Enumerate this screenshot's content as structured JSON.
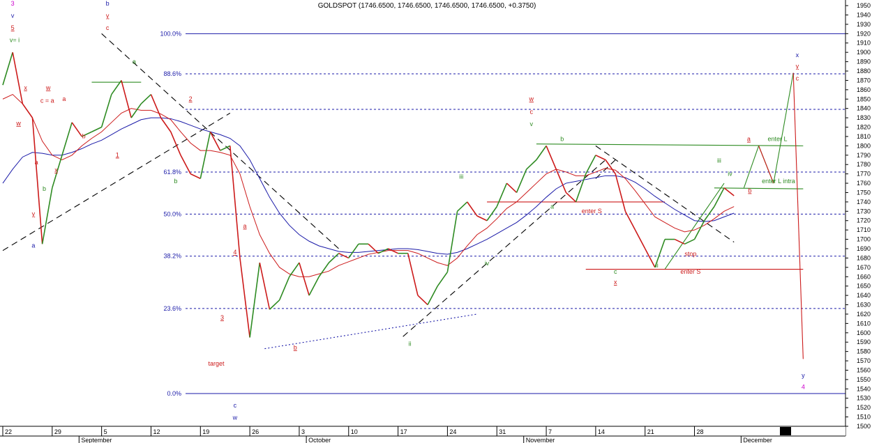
{
  "chart_data": {
    "type": "line",
    "title": "GOLDSPOT (1746.6500, 1746.6500, 1746.6500, 1746.6500, +0.3750)",
    "ylim": [
      1500,
      1956
    ],
    "grid": false,
    "y_ticks": [
      1500,
      1510,
      1520,
      1530,
      1540,
      1550,
      1560,
      1570,
      1580,
      1590,
      1600,
      1610,
      1620,
      1630,
      1640,
      1650,
      1660,
      1670,
      1680,
      1690,
      1700,
      1710,
      1720,
      1730,
      1740,
      1750,
      1760,
      1770,
      1780,
      1790,
      1800,
      1810,
      1820,
      1830,
      1840,
      1850,
      1860,
      1870,
      1880,
      1890,
      1900,
      1910,
      1920,
      1930,
      1940,
      1950
    ],
    "x_ticks": [
      {
        "label": "22",
        "i": 0
      },
      {
        "label": "29",
        "i": 5
      },
      {
        "label": "5",
        "i": 10
      },
      {
        "label": "12",
        "i": 15
      },
      {
        "label": "19",
        "i": 20
      },
      {
        "label": "26",
        "i": 25
      },
      {
        "label": "3",
        "i": 30
      },
      {
        "label": "10",
        "i": 35
      },
      {
        "label": "17",
        "i": 40
      },
      {
        "label": "24",
        "i": 45
      },
      {
        "label": "31",
        "i": 50
      },
      {
        "label": "7",
        "i": 55
      },
      {
        "label": "14",
        "i": 60
      },
      {
        "label": "21",
        "i": 65
      },
      {
        "label": "28",
        "i": 70
      }
    ],
    "months": [
      {
        "label": "September",
        "i": 8
      },
      {
        "label": "October",
        "i": 31
      },
      {
        "label": "November",
        "i": 53
      },
      {
        "label": "December",
        "i": 75
      }
    ],
    "x_range": [
      0,
      85
    ],
    "series": [
      {
        "color": "#2e8b22",
        "down_color": "#cc1a1a",
        "values": [
          1865,
          1900,
          1845,
          1830,
          1695,
          1755,
          1790,
          1825,
          1810,
          1815,
          1820,
          1855,
          1870,
          1830,
          1845,
          1855,
          1830,
          1815,
          1790,
          1770,
          1765,
          1815,
          1795,
          1800,
          1680,
          1595,
          1675,
          1625,
          1635,
          1660,
          1675,
          1640,
          1660,
          1675,
          1685,
          1680,
          1695,
          1695,
          1685,
          1690,
          1685,
          1685,
          1640,
          1630,
          1650,
          1665,
          1730,
          1740,
          1725,
          1720,
          1735,
          1760,
          1750,
          1775,
          1785,
          1800,
          1775,
          1750,
          1740,
          1770,
          1790,
          1785,
          1770,
          1730,
          1710,
          1690,
          1670,
          1700,
          1700,
          1695,
          1700,
          1720,
          1735,
          1755,
          1746.65
        ]
      },
      {
        "color": "#cc1a1a",
        "values": [
          1850,
          1855,
          1845,
          1830,
          1805,
          1790,
          1785,
          1790,
          1800,
          1808,
          1815,
          1825,
          1835,
          1840,
          1838,
          1838,
          1834,
          1828,
          1815,
          1803,
          1795,
          1795,
          1793,
          1790,
          1770,
          1735,
          1705,
          1685,
          1670,
          1663,
          1660,
          1660,
          1663,
          1666,
          1672,
          1676,
          1680,
          1684,
          1686,
          1688,
          1688,
          1688,
          1685,
          1680,
          1675,
          1672,
          1680,
          1693,
          1705,
          1712,
          1722,
          1733,
          1740,
          1750,
          1760,
          1770,
          1775,
          1772,
          1768,
          1768,
          1772,
          1776,
          1774,
          1765,
          1752,
          1738,
          1724,
          1718,
          1712,
          1708,
          1710,
          1715,
          1722,
          1730,
          1735
        ]
      },
      {
        "color": "#1a1aa8",
        "values": [
          1760,
          1775,
          1788,
          1793,
          1792,
          1790,
          1790,
          1793,
          1797,
          1802,
          1806,
          1812,
          1818,
          1823,
          1828,
          1830,
          1830,
          1829,
          1826,
          1822,
          1818,
          1815,
          1812,
          1808,
          1800,
          1785,
          1765,
          1745,
          1728,
          1715,
          1705,
          1698,
          1693,
          1690,
          1687,
          1686,
          1686,
          1687,
          1688,
          1689,
          1690,
          1690,
          1689,
          1687,
          1685,
          1684,
          1686,
          1690,
          1695,
          1700,
          1706,
          1712,
          1718,
          1726,
          1735,
          1745,
          1754,
          1760,
          1762,
          1764,
          1766,
          1768,
          1768,
          1766,
          1761,
          1754,
          1746,
          1739,
          1732,
          1726,
          1720,
          1719,
          1720,
          1724,
          1728
        ]
      }
    ],
    "fib_levels": [
      {
        "label": "100.0%",
        "value": 1920,
        "style": "solid"
      },
      {
        "label": "88.6%",
        "value": 1877,
        "style": "dashed"
      },
      {
        "label": "",
        "value": 1839,
        "style": "dashed"
      },
      {
        "label": "61.8%",
        "value": 1772,
        "style": "dashed"
      },
      {
        "label": "50.0%",
        "value": 1727,
        "style": "dashed"
      },
      {
        "label": "38.2%",
        "value": 1682,
        "style": "dashed"
      },
      {
        "label": "23.6%",
        "value": 1626,
        "style": "dashed"
      },
      {
        "label": "0.0%",
        "value": 1535,
        "style": "solid"
      }
    ],
    "trendlines": [
      {
        "x1": 0,
        "y1": 1688,
        "x2": 23,
        "y2": 1835,
        "color": "#000000",
        "style": "dash"
      },
      {
        "x1": 10,
        "y1": 1920,
        "x2": 34,
        "y2": 1690,
        "color": "#000000",
        "style": "dash"
      },
      {
        "x1": 26.5,
        "y1": 1583,
        "x2": 48,
        "y2": 1620,
        "color": "#1a1aa8",
        "style": "dot"
      },
      {
        "x1": 40.5,
        "y1": 1596,
        "x2": 61,
        "y2": 1785,
        "color": "#000000",
        "style": "dash"
      },
      {
        "x1": 60,
        "y1": 1765,
        "x2": 62,
        "y2": 1785,
        "color": "#000000",
        "style": "dash"
      },
      {
        "x1": 60,
        "y1": 1800,
        "x2": 74,
        "y2": 1697,
        "color": "#000000",
        "style": "dash"
      },
      {
        "x1": 54,
        "y1": 1802,
        "x2": 81,
        "y2": 1800,
        "color": "#2e8b22",
        "style": "solid"
      },
      {
        "x1": 67,
        "y1": 1668,
        "x2": 73,
        "y2": 1760,
        "color": "#2e8b22",
        "style": "solid"
      },
      {
        "x1": 72,
        "y1": 1755,
        "x2": 81,
        "y2": 1754,
        "color": "#2e8b22",
        "style": "solid"
      },
      {
        "x1": 49,
        "y1": 1740,
        "x2": 67,
        "y2": 1740,
        "color": "#cc1a1a",
        "style": "solid"
      },
      {
        "x1": 59,
        "y1": 1668,
        "x2": 81,
        "y2": 1668,
        "color": "#cc1a1a",
        "style": "solid"
      },
      {
        "x1": 9,
        "y1": 1868,
        "x2": 14,
        "y2": 1868,
        "color": "#2e8b22",
        "style": "solid"
      },
      {
        "x1": 75,
        "y1": 1755,
        "x2": 76.5,
        "y2": 1800,
        "color": "#2e8b22",
        "style": "solid"
      },
      {
        "x1": 76.5,
        "y1": 1800,
        "x2": 78,
        "y2": 1760,
        "color": "#2e8b22",
        "style": "solid"
      },
      {
        "x1": 78,
        "y1": 1760,
        "x2": 80,
        "y2": 1878,
        "color": "#2e8b22",
        "style": "solid"
      },
      {
        "x1": 76.5,
        "y1": 1800,
        "x2": 78,
        "y2": 1760,
        "color": "#cc1a1a",
        "style": "solid"
      },
      {
        "x1": 80,
        "y1": 1878,
        "x2": 81,
        "y2": 1572,
        "color": "#cc1a1a",
        "style": "solid"
      }
    ],
    "annotations": [
      {
        "text": "3",
        "i": 1,
        "v": 1950,
        "color": "#cc00cc"
      },
      {
        "text": "v",
        "i": 1,
        "v": 1937,
        "color": "#1a1aa8"
      },
      {
        "text": "5",
        "i": 1,
        "v": 1924,
        "color": "#cc1a1a",
        "underline": true
      },
      {
        "text": "v= i",
        "i": 1.2,
        "v": 1911,
        "color": "#2e8b22"
      },
      {
        "text": "x",
        "i": 2.3,
        "v": 1860,
        "color": "#cc1a1a",
        "underline": true
      },
      {
        "text": "w",
        "i": 1.6,
        "v": 1822,
        "color": "#cc1a1a",
        "underline": true
      },
      {
        "text": "a",
        "i": 3.4,
        "v": 1780,
        "color": "#cc1a1a"
      },
      {
        "text": "b",
        "i": 4.2,
        "v": 1752,
        "color": "#2e8b22"
      },
      {
        "text": "y",
        "i": 3.1,
        "v": 1725,
        "color": "#cc1a1a",
        "underline": true
      },
      {
        "text": "a",
        "i": 3.1,
        "v": 1691,
        "color": "#1a1aa8"
      },
      {
        "text": "w",
        "i": 4.6,
        "v": 1860,
        "color": "#cc1a1a",
        "underline": true
      },
      {
        "text": "c = a",
        "i": 4.5,
        "v": 1846,
        "color": "#cc1a1a"
      },
      {
        "text": "a",
        "i": 6.2,
        "v": 1848,
        "color": "#cc1a1a"
      },
      {
        "text": "x",
        "i": 5.4,
        "v": 1772,
        "color": "#cc1a1a",
        "underline": true
      },
      {
        "text": "b",
        "i": 8.2,
        "v": 1808,
        "color": "#cc1a1a"
      },
      {
        "text": "b",
        "i": 10.6,
        "v": 1950,
        "color": "#1a1aa8"
      },
      {
        "text": "y",
        "i": 10.6,
        "v": 1937,
        "color": "#cc1a1a",
        "underline": true
      },
      {
        "text": "c",
        "i": 10.6,
        "v": 1924,
        "color": "#cc1a1a"
      },
      {
        "text": "a",
        "i": 13.3,
        "v": 1888,
        "color": "#2e8b22"
      },
      {
        "text": "1",
        "i": 11.6,
        "v": 1788,
        "color": "#cc1a1a",
        "underline": true
      },
      {
        "text": "2",
        "i": 19,
        "v": 1848,
        "color": "#cc1a1a",
        "underline": true
      },
      {
        "text": "b",
        "i": 17.5,
        "v": 1760,
        "color": "#2e8b22"
      },
      {
        "text": "a",
        "i": 24.5,
        "v": 1712,
        "color": "#cc1a1a",
        "underline": true
      },
      {
        "text": "4",
        "i": 23.5,
        "v": 1684,
        "color": "#cc1a1a",
        "underline": true
      },
      {
        "text": "3",
        "i": 22.2,
        "v": 1614,
        "color": "#cc1a1a",
        "underline": true
      },
      {
        "text": "target",
        "i": 21.6,
        "v": 1565,
        "color": "#cc1a1a"
      },
      {
        "text": "c",
        "i": 23.5,
        "v": 1520,
        "color": "#1a1aa8"
      },
      {
        "text": "w",
        "i": 23.5,
        "v": 1507,
        "color": "#1a1aa8"
      },
      {
        "text": "b",
        "i": 29.6,
        "v": 1582,
        "color": "#cc1a1a",
        "underline": true
      },
      {
        "text": "iii",
        "i": 46.4,
        "v": 1765,
        "color": "#2e8b22"
      },
      {
        "text": "iv",
        "i": 49,
        "v": 1672,
        "color": "#2e8b22"
      },
      {
        "text": "ii",
        "i": 41.2,
        "v": 1586,
        "color": "#2e8b22"
      },
      {
        "text": "w",
        "i": 53.5,
        "v": 1848,
        "color": "#cc1a1a",
        "underline": true
      },
      {
        "text": "c",
        "i": 53.5,
        "v": 1834,
        "color": "#cc1a1a"
      },
      {
        "text": "v",
        "i": 53.5,
        "v": 1821,
        "color": "#2e8b22"
      },
      {
        "text": "b",
        "i": 56.6,
        "v": 1805,
        "color": "#2e8b22"
      },
      {
        "text": "a",
        "i": 55.6,
        "v": 1733,
        "color": "#2e8b22"
      },
      {
        "text": "enter S",
        "i": 59.6,
        "v": 1728,
        "color": "#cc1a1a"
      },
      {
        "text": "c",
        "i": 62,
        "v": 1663,
        "color": "#2e8b22"
      },
      {
        "text": "x",
        "i": 62,
        "v": 1652,
        "color": "#cc1a1a",
        "underline": true
      },
      {
        "text": "ii",
        "i": 66.2,
        "v": 1670,
        "color": "#2e8b22"
      },
      {
        "text": "stop",
        "i": 69.6,
        "v": 1682,
        "color": "#cc1a1a"
      },
      {
        "text": "enter S",
        "i": 69.6,
        "v": 1663,
        "color": "#cc1a1a"
      },
      {
        "text": "iii",
        "i": 72.5,
        "v": 1782,
        "color": "#2e8b22"
      },
      {
        "text": "iv",
        "i": 73.6,
        "v": 1768,
        "color": "#2e8b22"
      },
      {
        "text": "a",
        "i": 75.5,
        "v": 1805,
        "color": "#cc1a1a",
        "underline": true
      },
      {
        "text": "enter L",
        "i": 78.4,
        "v": 1805,
        "color": "#2e8b22"
      },
      {
        "text": "enter L intra",
        "i": 78.5,
        "v": 1760,
        "color": "#2e8b22"
      },
      {
        "text": "b",
        "i": 75.6,
        "v": 1750,
        "color": "#cc1a1a",
        "underline": true
      },
      {
        "text": "x",
        "i": 80.4,
        "v": 1895,
        "color": "#1a1aa8"
      },
      {
        "text": "y",
        "i": 80.4,
        "v": 1883,
        "color": "#cc1a1a",
        "underline": true
      },
      {
        "text": "c",
        "i": 80.4,
        "v": 1870,
        "color": "#cc1a1a"
      },
      {
        "text": "y",
        "i": 81,
        "v": 1552,
        "color": "#1a1aa8"
      },
      {
        "text": "4",
        "i": 81,
        "v": 1540,
        "color": "#cc00cc"
      }
    ]
  }
}
